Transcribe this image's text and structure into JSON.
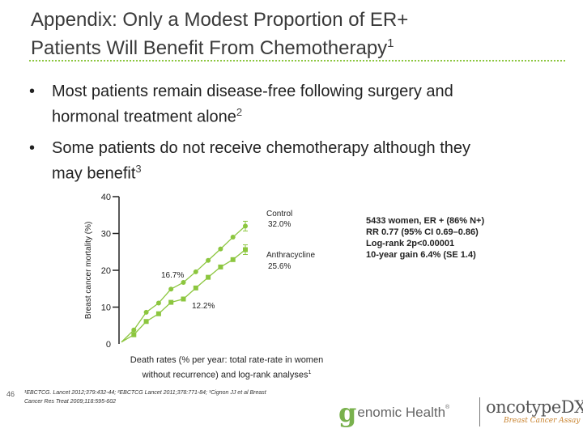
{
  "slide": {
    "title_line1": "Appendix: Only a Modest Proportion of ER+",
    "title_line2": "Patients Will Benefit From Chemotherapy",
    "title_sup": "1",
    "page_number": "46"
  },
  "bullets": [
    {
      "line1": "Most patients remain disease-free following surgery and",
      "line2": "hormonal treatment alone",
      "sup": "2"
    },
    {
      "line1": "Some patients do not receive chemotherapy although they",
      "line2": "may benefit",
      "sup": "3"
    }
  ],
  "chart_data": {
    "type": "line",
    "ylabel": "Breast cancer mortality (%)",
    "ylim": [
      0,
      40
    ],
    "yticks": [
      "0",
      "10",
      "20",
      "30",
      "40"
    ],
    "x": [
      0,
      1,
      2,
      3,
      4,
      5,
      6,
      7,
      8,
      9,
      10
    ],
    "series": [
      {
        "name": "Control",
        "values": [
          0.5,
          3.8,
          8.6,
          11.1,
          14.9,
          16.7,
          19.6,
          22.7,
          25.8,
          29.0,
          32.0
        ],
        "color": "#8cc63f",
        "marker": "circle"
      },
      {
        "name": "Anthracycline",
        "values": [
          0.5,
          2.5,
          6.1,
          8.2,
          11.3,
          12.2,
          15.2,
          18.1,
          20.9,
          22.9,
          25.6
        ],
        "color": "#8cc63f",
        "marker": "square"
      }
    ],
    "annotations": [
      {
        "text_line1": "Control",
        "text_line2": "32.0%"
      },
      {
        "text_line1": "Anthracycline",
        "text_line2": "25.6%"
      },
      {
        "text": "16.7%"
      },
      {
        "text": "12.2%"
      }
    ],
    "caption_line1": "Death rates (% per year: total rate-rate in women",
    "caption_line2": "without recurrence) and log-rank analyses",
    "caption_sup": "1"
  },
  "stats_box": {
    "line1": "5433 women, ER + (86% N+)",
    "line2": "RR 0.77 (95% CI 0.69–0.86)",
    "line3": "Log-rank 2p<0.00001",
    "line4": "10-year gain 6.4% (SE 1.4)"
  },
  "footnote": {
    "line1": "¹EBCTCG. Lancet 2012;379:432-44; ²EBCTCG Lancet 2011;378:771-84; ³Cignon JJ et al Breast",
    "line2": "Cancer Res Treat 2009;118:595-602"
  },
  "logos": {
    "gh_g": "g",
    "gh_text": "enomic Health",
    "gh_reg": "®",
    "onco_main": "oncotypeDX",
    "onco_sub": "Breast Cancer Assay"
  },
  "colors": {
    "accent": "#8cc63f",
    "brand_green": "#79b14d",
    "brand_orange": "#c8822d"
  }
}
